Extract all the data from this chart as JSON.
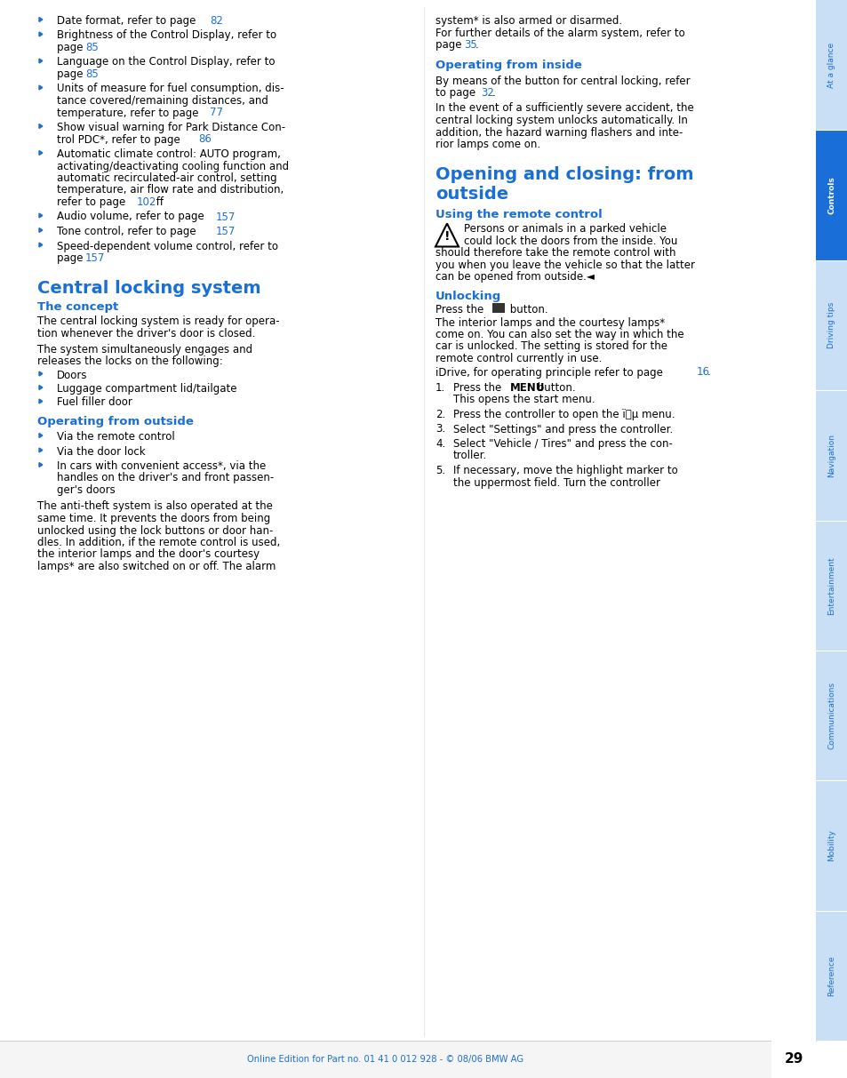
{
  "bg_color": "#ffffff",
  "blue": "#1a6ed8",
  "black": "#000000",
  "sidebar_bg": "#c8dff5",
  "sidebar_active_bg": "#1a6ed8",
  "sidebar_active_text": "#ffffff",
  "sidebar_text": "#1a6ed8",
  "footer_bg": "#f5f5f5",
  "footer_text_color": "#1a6ed8",
  "page_num": "29",
  "footer_text": "Online Edition for Part no. 01 41 0 012 928 - © 08/06 BMW AG",
  "sidebar_labels": [
    "At a glance",
    "Controls",
    "Driving tips",
    "Navigation",
    "Entertainment",
    "Communications",
    "Mobility",
    "Reference"
  ],
  "sidebar_active": "Controls"
}
